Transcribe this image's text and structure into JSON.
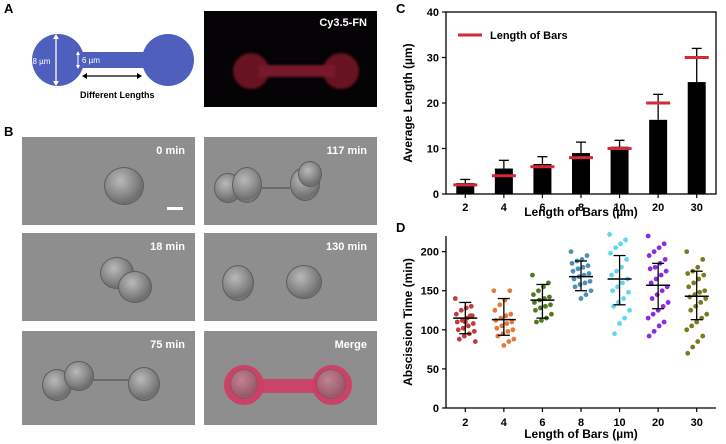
{
  "panels": {
    "A": "A",
    "B": "B",
    "C": "C",
    "D": "D"
  },
  "schematic": {
    "width_label": "18 µm",
    "bar_width_label": "6 µm",
    "length_label": "Different Lengths",
    "color": "#4e5fbd"
  },
  "fluorescence": {
    "label": "Cy3.5-FN",
    "color": "#c0304f"
  },
  "timelapse": {
    "frames": [
      "0 min",
      "18 min",
      "75 min",
      "117 min",
      "130 min",
      "Merge"
    ]
  },
  "chart_data": [
    {
      "type": "bar",
      "title": "",
      "categories": [
        "2",
        "4",
        "6",
        "8",
        "10",
        "20",
        "30"
      ],
      "values": [
        2.4,
        5.6,
        6.6,
        9.0,
        10.4,
        16.3,
        24.6
      ],
      "errors": [
        0.8,
        1.8,
        1.6,
        2.4,
        1.4,
        5.6,
        7.4
      ],
      "reference_name": "Length of Bars",
      "reference_values": [
        2,
        4,
        6,
        8,
        10,
        20,
        30
      ],
      "reference_color": "#d42a35",
      "xlabel": "Length of Bars (µm)",
      "ylabel": "Average Length  (µm)",
      "ylim": [
        0,
        40
      ],
      "yticks": [
        "0",
        "10",
        "20",
        "30",
        "40"
      ]
    },
    {
      "type": "scatter",
      "categories": [
        "2",
        "4",
        "6",
        "8",
        "10",
        "20",
        "30"
      ],
      "means": [
        115,
        113,
        138,
        168,
        165,
        157,
        143
      ],
      "sd_low": [
        95,
        93,
        115,
        150,
        132,
        127,
        113
      ],
      "sd_high": [
        135,
        140,
        158,
        188,
        195,
        185,
        175
      ],
      "colors": [
        "#c23b3b",
        "#e07a3a",
        "#4f7a1e",
        "#4e8fb8",
        "#5fd8ef",
        "#8a2be2",
        "#7a7a1e"
      ],
      "points": [
        [
          140,
          130,
          128,
          125,
          120,
          118,
          115,
          112,
          110,
          108,
          105,
          102,
          100,
          98,
          95,
          92,
          88,
          85,
          118,
          110
        ],
        [
          150,
          150,
          138,
          132,
          125,
          120,
          118,
          115,
          112,
          110,
          108,
          105,
          102,
          100,
          98,
          95,
          92,
          88,
          85,
          80
        ],
        [
          170,
          160,
          155,
          150,
          145,
          142,
          140,
          138,
          135,
          132,
          130,
          128,
          125,
          120,
          115,
          112,
          110
        ],
        [
          200,
          195,
          190,
          188,
          185,
          182,
          180,
          178,
          175,
          172,
          170,
          168,
          165,
          162,
          160,
          158,
          155,
          150,
          145,
          140
        ],
        [
          222,
          215,
          210,
          205,
          198,
          190,
          180,
          175,
          170,
          165,
          160,
          155,
          150,
          148,
          140,
          135,
          130,
          125,
          115,
          108,
          95
        ],
        [
          220,
          210,
          205,
          200,
          195,
          190,
          185,
          180,
          178,
          175,
          170,
          165,
          160,
          155,
          150,
          145,
          140,
          135,
          130,
          125,
          120,
          115,
          110,
          105,
          98,
          92
        ],
        [
          200,
          190,
          180,
          175,
          172,
          170,
          165,
          160,
          155,
          150,
          148,
          145,
          142,
          140,
          135,
          130,
          125,
          120,
          115,
          110,
          105,
          100,
          92,
          85,
          78,
          70
        ]
      ],
      "xlabel": "Length of Bars (µm)",
      "ylabel": "Abscission Time (min)",
      "ylim": [
        0,
        220
      ],
      "yticks": [
        "0",
        "50",
        "100",
        "150",
        "200"
      ]
    }
  ]
}
